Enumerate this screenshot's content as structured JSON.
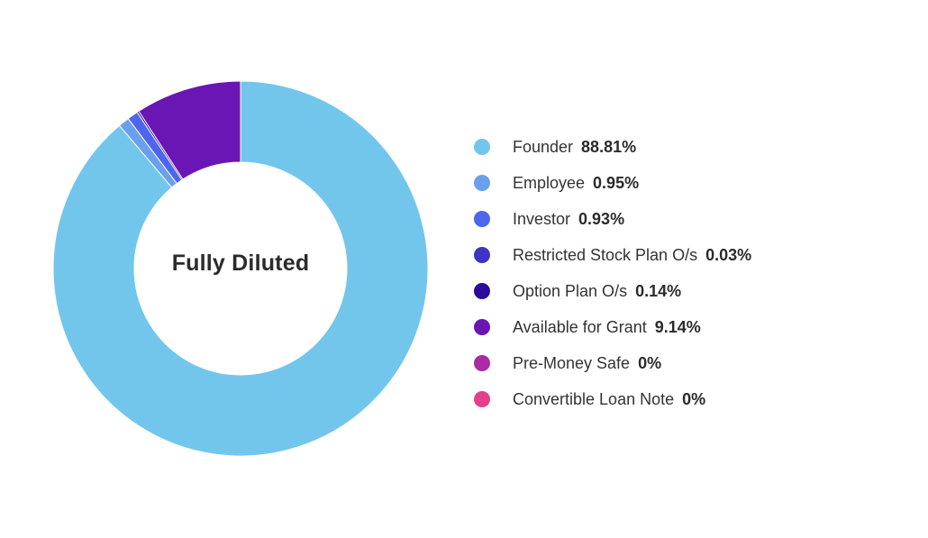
{
  "chart_data": {
    "type": "pie",
    "style": "donut",
    "center_label": "Fully Diluted",
    "legend_placement": "right",
    "slices": [
      {
        "name": "Founder",
        "value": 88.81,
        "display": "88.81%",
        "color": "#72c6ec"
      },
      {
        "name": "Employee",
        "value": 0.95,
        "display": "0.95%",
        "color": "#6a9ff0"
      },
      {
        "name": "Investor",
        "value": 0.93,
        "display": "0.93%",
        "color": "#4d66ec"
      },
      {
        "name": "Restricted Stock Plan O/s",
        "value": 0.03,
        "display": "0.03%",
        "color": "#3d34c4"
      },
      {
        "name": "Option Plan O/s",
        "value": 0.14,
        "display": "0.14%",
        "color": "#2c0b9a"
      },
      {
        "name": "Available for Grant",
        "value": 9.14,
        "display": "9.14%",
        "color": "#6a16b5"
      },
      {
        "name": "Pre-Money Safe",
        "value": 0,
        "display": "0%",
        "color": "#a92ca4"
      },
      {
        "name": "Convertible Loan Note",
        "value": 0,
        "display": "0%",
        "color": "#e33f8a"
      }
    ]
  }
}
